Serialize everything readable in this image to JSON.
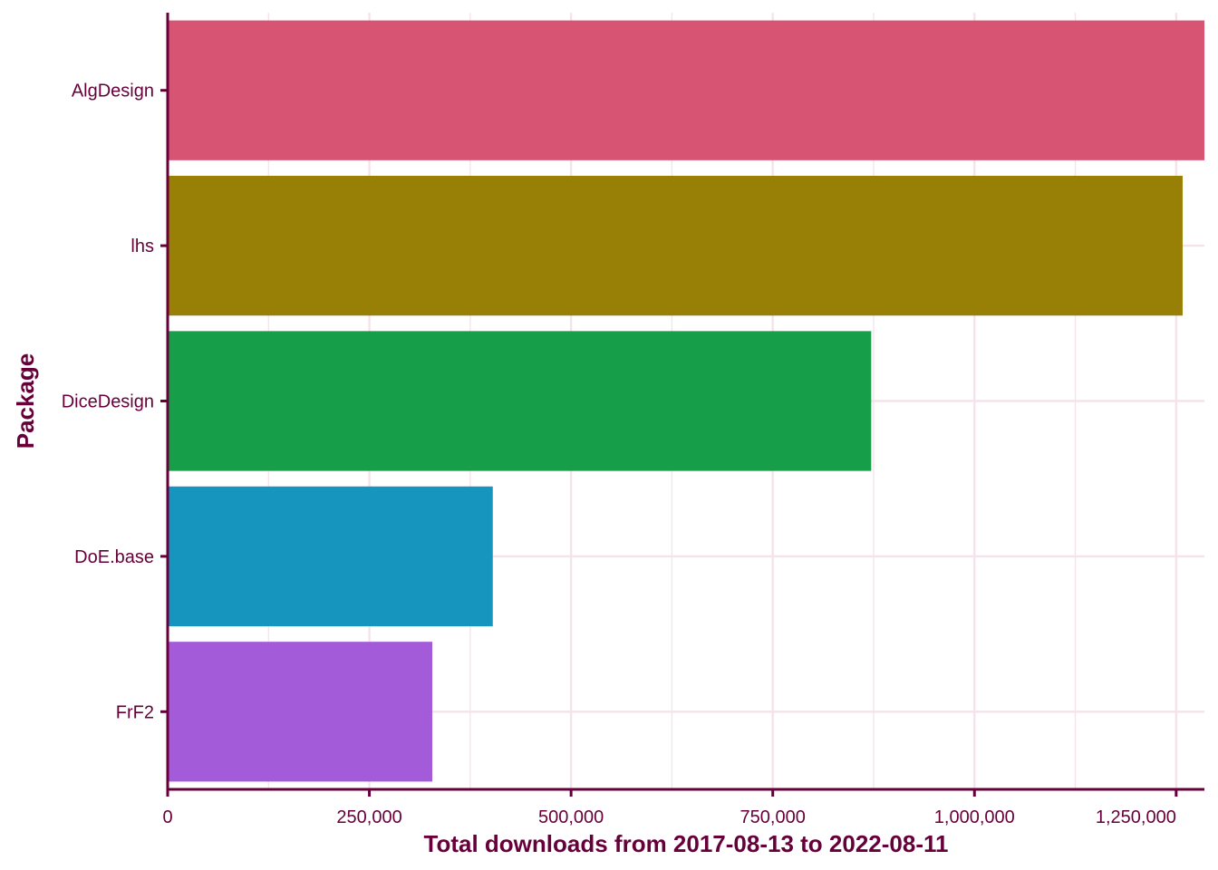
{
  "chart_data": {
    "type": "bar",
    "orientation": "horizontal",
    "categories": [
      "AlgDesign",
      "lhs",
      "DiceDesign",
      "DoE.base",
      "FrF2"
    ],
    "values": [
      1285000,
      1258000,
      872000,
      403000,
      328000
    ],
    "colors": [
      "#D85473",
      "#987F05",
      "#169F48",
      "#1696BF",
      "#A45BD9"
    ],
    "xlabel": "Total downloads from 2017-08-13 to 2022-08-11",
    "ylabel": "Package",
    "xlim": [
      0,
      1285000
    ],
    "x_ticks": [
      0,
      250000,
      500000,
      750000,
      1000000,
      1250000
    ],
    "x_tick_labels": [
      "0",
      "250,000",
      "500,000",
      "750,000",
      "1,000,000",
      "1,250,000"
    ],
    "grid": true,
    "legend": "none"
  },
  "theme": {
    "axis_color": "#67003A",
    "grid_color": "#F5E3EB",
    "background": "#FFFFFF"
  }
}
